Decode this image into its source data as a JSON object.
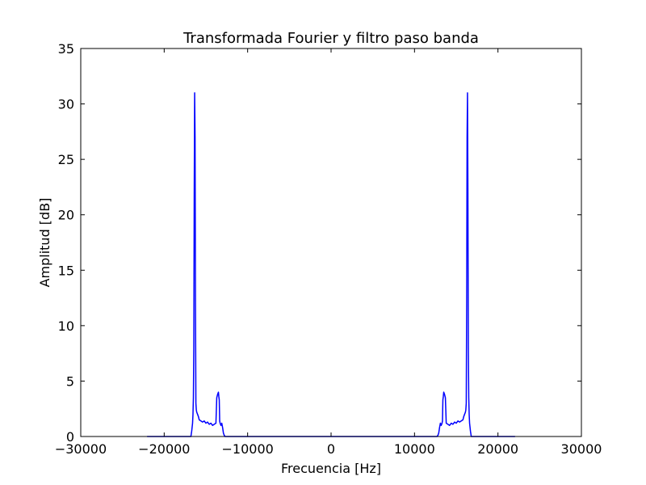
{
  "chart_data": {
    "type": "line",
    "title": "Transformada Fourier y filtro paso banda",
    "xlabel": "Frecuencia [Hz]",
    "ylabel": "Amplitud [dB]",
    "xlim": [
      -30000,
      30000
    ],
    "ylim": [
      0,
      35
    ],
    "xticks": [
      -30000,
      -20000,
      -10000,
      0,
      10000,
      20000,
      30000
    ],
    "xtick_labels": [
      "−30000",
      "−20000",
      "−10000",
      "0",
      "10000",
      "20000",
      "30000"
    ],
    "yticks": [
      0,
      5,
      10,
      15,
      20,
      25,
      30,
      35
    ],
    "ytick_labels": [
      "0",
      "5",
      "10",
      "15",
      "20",
      "25",
      "30",
      "35"
    ],
    "grid": false,
    "series": [
      {
        "color": "#0000ff",
        "x": [
          -22050,
          -16800,
          -16700,
          -16600,
          -16550,
          -16500,
          -16450,
          -16400,
          -16350,
          -16300,
          -16250,
          -16200,
          -16150,
          -16100,
          -16000,
          -15900,
          -15800,
          -15600,
          -15400,
          -15200,
          -15000,
          -14800,
          -14600,
          -14400,
          -14200,
          -14000,
          -13800,
          -13700,
          -13600,
          -13500,
          -13450,
          -13400,
          -13350,
          -13300,
          -13250,
          -13200,
          -13100,
          -13000,
          -12900,
          -12800,
          -12700,
          12700,
          12800,
          12900,
          13000,
          13100,
          13200,
          13250,
          13300,
          13350,
          13400,
          13450,
          13500,
          13600,
          13700,
          13800,
          14000,
          14200,
          14400,
          14600,
          14800,
          15000,
          15200,
          15400,
          15600,
          15800,
          15900,
          16000,
          16100,
          16150,
          16200,
          16250,
          16300,
          16350,
          16400,
          16450,
          16500,
          16550,
          16600,
          16700,
          16800,
          22050
        ],
        "y": [
          0,
          0,
          0.5,
          1.2,
          2.0,
          3.5,
          8.0,
          22.0,
          31.0,
          27.0,
          12.0,
          3.0,
          2.4,
          2.2,
          2.0,
          1.8,
          1.5,
          1.4,
          1.3,
          1.4,
          1.2,
          1.3,
          1.1,
          1.2,
          1.0,
          1.1,
          1.2,
          3.5,
          3.8,
          4.0,
          3.6,
          3.3,
          1.4,
          1.2,
          1.1,
          1.0,
          1.2,
          0.8,
          0.3,
          0.1,
          0,
          0,
          0.1,
          0.3,
          0.8,
          1.2,
          1.0,
          1.1,
          1.2,
          1.4,
          3.3,
          3.6,
          4.0,
          3.8,
          3.5,
          1.2,
          1.1,
          1.0,
          1.2,
          1.1,
          1.3,
          1.2,
          1.4,
          1.3,
          1.4,
          1.5,
          1.8,
          2.0,
          2.2,
          2.4,
          3.0,
          12.0,
          27.0,
          31.0,
          22.0,
          8.0,
          3.5,
          2.0,
          1.2,
          0.5,
          0,
          0
        ]
      }
    ]
  }
}
